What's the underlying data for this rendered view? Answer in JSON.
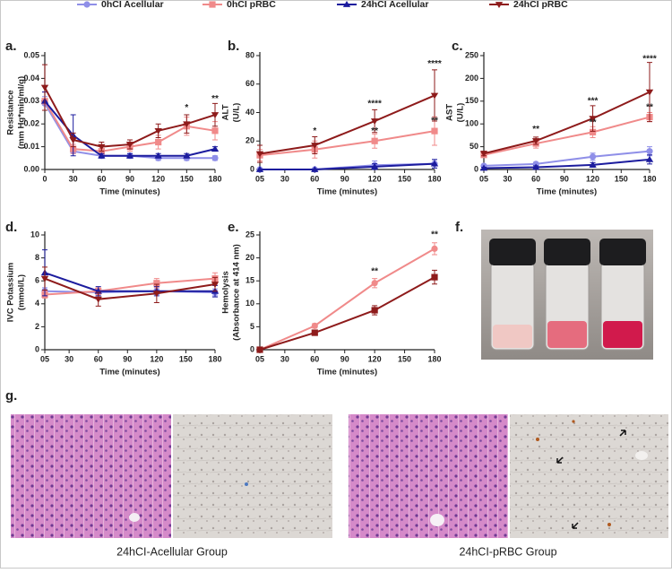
{
  "legend_note": null,
  "chart_data": [
    {
      "type": "line",
      "x": [
        0,
        30,
        60,
        90,
        120,
        150,
        180
      ],
      "xlim": [
        0,
        180
      ],
      "xticks": [
        0,
        30,
        60,
        90,
        120,
        150,
        180
      ],
      "ylim": [
        0,
        0.05
      ],
      "yticks": [
        {
          "value": 0,
          "label": "0.00"
        },
        0.01,
        0.02,
        0.03,
        0.04,
        0.05
      ],
      "xlabel": "Time (minutes)",
      "ylabel": [
        "Resistance",
        "(mm Hg*min/ml/g)"
      ],
      "series": [
        {
          "name": "0hCI Acellular",
          "color": "#8f8fe8",
          "marker": "circle",
          "values": [
            0.029,
            0.008,
            0.006,
            0.006,
            0.005,
            0.005,
            0.005
          ],
          "errors": [
            0.003,
            0.001,
            0.001,
            0.001,
            0.001,
            0.001,
            0.001
          ]
        },
        {
          "name": "0hCI pRBC",
          "color": "#f08a8a",
          "marker": "square",
          "values": [
            0.03,
            0.009,
            0.008,
            0.01,
            0.012,
            0.019,
            0.017
          ],
          "errors": [
            0.004,
            0.002,
            0.002,
            0.002,
            0.003,
            0.004,
            0.004
          ]
        },
        {
          "name": "24hCI Acellular",
          "color": "#1c1c9e",
          "marker": "triangle",
          "values": [
            0.03,
            0.015,
            0.006,
            0.006,
            0.006,
            0.006,
            0.009
          ],
          "errors": [
            0.004,
            0.009,
            0.001,
            0.001,
            0.001,
            0.001,
            0.001
          ]
        },
        {
          "name": "24hCI pRBC",
          "color": "#8e1b1b",
          "marker": "triangle-down",
          "values": [
            0.036,
            0.013,
            0.01,
            0.011,
            0.017,
            0.02,
            0.024
          ],
          "errors": [
            0.01,
            0.003,
            0.002,
            0.002,
            0.003,
            0.004,
            0.005
          ]
        }
      ],
      "annotations": [
        {
          "text": "*",
          "x": 150,
          "y": 0.027
        },
        {
          "text": "**",
          "x": 180,
          "y": 0.031
        }
      ]
    },
    {
      "type": "line",
      "x": [
        5,
        60,
        120,
        180
      ],
      "xlim": [
        5,
        180
      ],
      "xticks": [
        {
          "value": 5,
          "label": "05"
        },
        30,
        60,
        90,
        120,
        150,
        180
      ],
      "ylim": [
        0,
        80
      ],
      "yticks": [
        0,
        20,
        40,
        60,
        80
      ],
      "xlabel": "Time (minutes)",
      "ylabel": [
        "ALT",
        "(U/L)"
      ],
      "series": [
        {
          "color": "#8f8fe8",
          "marker": "circle",
          "values": [
            0,
            0,
            3,
            4
          ],
          "errors": [
            0,
            0,
            3,
            3
          ]
        },
        {
          "color": "#f08a8a",
          "marker": "square",
          "values": [
            10,
            14,
            20,
            27
          ],
          "errors": [
            4,
            6,
            5,
            10
          ]
        },
        {
          "color": "#1c1c9e",
          "marker": "triangle",
          "values": [
            0,
            0,
            2,
            4
          ],
          "errors": [
            0,
            0,
            2,
            3
          ]
        },
        {
          "color": "#8e1b1b",
          "marker": "triangle-down",
          "values": [
            11,
            17,
            34,
            52
          ],
          "errors": [
            6,
            6,
            8,
            18
          ]
        }
      ],
      "annotations": [
        {
          "text": "*",
          "x": 60,
          "y": 27
        },
        {
          "text": "****",
          "x": 120,
          "y": 46
        },
        {
          "text": "**",
          "x": 120,
          "y": 27
        },
        {
          "text": "****",
          "x": 180,
          "y": 74
        },
        {
          "text": "**",
          "x": 180,
          "y": 34
        }
      ]
    },
    {
      "type": "line",
      "x": [
        5,
        60,
        120,
        180
      ],
      "xlim": [
        5,
        180
      ],
      "xticks": [
        {
          "value": 5,
          "label": "05"
        },
        30,
        60,
        90,
        120,
        150,
        180
      ],
      "ylim": [
        0,
        250
      ],
      "yticks": [
        0,
        50,
        100,
        150,
        200,
        250
      ],
      "xlabel": "Time (minutes)",
      "ylabel": [
        "AST",
        "(U/L)"
      ],
      "series": [
        {
          "color": "#8f8fe8",
          "marker": "circle",
          "values": [
            8,
            12,
            28,
            40
          ],
          "errors": [
            2,
            4,
            8,
            10
          ]
        },
        {
          "color": "#f08a8a",
          "marker": "square",
          "values": [
            32,
            57,
            82,
            115
          ],
          "errors": [
            5,
            10,
            12,
            10
          ]
        },
        {
          "color": "#1c1c9e",
          "marker": "triangle",
          "values": [
            3,
            5,
            10,
            22
          ],
          "errors": [
            2,
            3,
            5,
            10
          ]
        },
        {
          "color": "#8e1b1b",
          "marker": "triangle-down",
          "values": [
            35,
            63,
            112,
            170
          ],
          "errors": [
            5,
            8,
            28,
            65
          ]
        }
      ],
      "annotations": [
        {
          "text": "**",
          "x": 60,
          "y": 88
        },
        {
          "text": "***",
          "x": 120,
          "y": 150
        },
        {
          "text": "**",
          "x": 120,
          "y": 103
        },
        {
          "text": "****",
          "x": 180,
          "y": 242
        },
        {
          "text": "**",
          "x": 180,
          "y": 136
        }
      ]
    },
    {
      "type": "line",
      "x": [
        5,
        60,
        120,
        180
      ],
      "xlim": [
        5,
        180
      ],
      "xticks": [
        {
          "value": 5,
          "label": "05"
        },
        30,
        60,
        90,
        120,
        150,
        180
      ],
      "ylim": [
        0,
        10
      ],
      "yticks": [
        0,
        2,
        4,
        6,
        8,
        10
      ],
      "xlabel": "Time (minutes)",
      "ylabel": [
        "IVC Potassium",
        "(mmol/L)"
      ],
      "series": [
        {
          "color": "#8f8fe8",
          "marker": "circle",
          "values": [
            5.1,
            5.0,
            5.1,
            5.0
          ],
          "errors": [
            0.3,
            0.3,
            0.3,
            0.3
          ]
        },
        {
          "color": "#f08a8a",
          "marker": "square",
          "values": [
            4.8,
            5.1,
            5.8,
            6.2
          ],
          "errors": [
            0.3,
            0.3,
            0.4,
            0.5
          ]
        },
        {
          "color": "#1c1c9e",
          "marker": "triangle",
          "values": [
            6.7,
            5.1,
            5.1,
            5.1
          ],
          "errors": [
            2.0,
            0.4,
            0.4,
            0.5
          ]
        },
        {
          "color": "#8e1b1b",
          "marker": "triangle-down",
          "values": [
            6.2,
            4.4,
            4.9,
            5.7
          ],
          "errors": [
            1.0,
            0.6,
            0.8,
            0.6
          ]
        }
      ],
      "annotations": []
    },
    {
      "type": "line",
      "x": [
        5,
        60,
        120,
        180
      ],
      "xlim": [
        5,
        180
      ],
      "xticks": [
        {
          "value": 5,
          "label": "05"
        },
        30,
        60,
        90,
        120,
        150,
        180
      ],
      "ylim": [
        0,
        25
      ],
      "yticks": [
        0,
        5,
        10,
        15,
        20,
        25
      ],
      "xlabel": "Time (minutes)",
      "ylabel": [
        "Hemolysis",
        "(Absorbance at 414 nm)"
      ],
      "series": [
        {
          "color": "#f08a8a",
          "marker": "circle",
          "values": [
            0,
            5.2,
            14.5,
            22
          ],
          "errors": [
            0,
            0.5,
            1.0,
            1.3
          ]
        },
        {
          "color": "#8e1b1b",
          "marker": "square",
          "values": [
            0,
            3.7,
            8.6,
            15.8
          ],
          "errors": [
            0,
            0.3,
            1.0,
            1.5
          ]
        }
      ],
      "annotations": [
        {
          "text": "**",
          "x": 120,
          "y": 17
        },
        {
          "text": "**",
          "x": 180,
          "y": 25
        }
      ]
    }
  ],
  "panel_labels": [
    "a.",
    "b.",
    "c.",
    "d.",
    "e.",
    "f.",
    "g."
  ],
  "captions": [
    "24hCI-Acellular Group",
    "24hCI-pRBC Group"
  ]
}
